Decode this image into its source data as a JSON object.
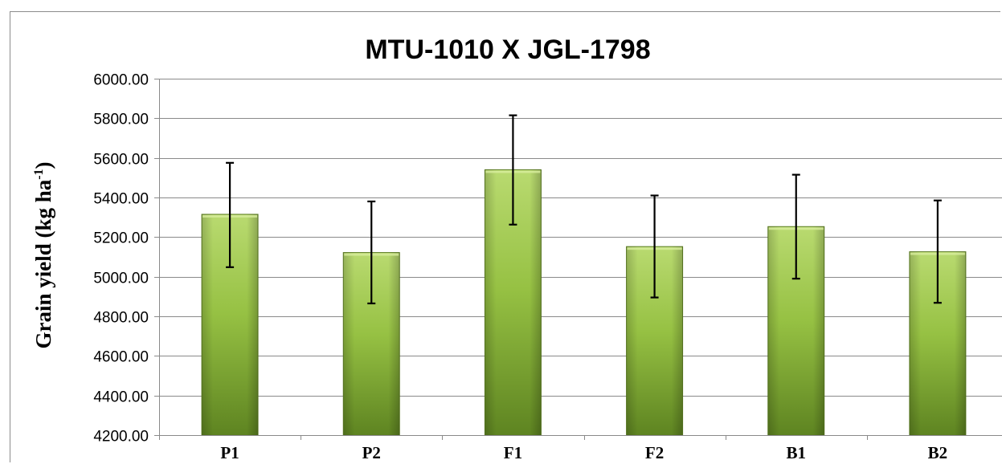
{
  "chart_data": {
    "type": "bar",
    "title": "MTU-1010 X JGL-1798",
    "ylabel_main": "Grain  yield (kg ha",
    "ylabel_sup": "-1",
    "ylabel_close": ")",
    "xlabel": "",
    "categories": [
      "P1",
      "P2",
      "F1",
      "F2",
      "B1",
      "B2"
    ],
    "values": [
      5315,
      5122,
      5540,
      5152,
      5253,
      5126
    ],
    "error_low": [
      5048,
      4865,
      5263,
      4895,
      4990,
      4868
    ],
    "error_high": [
      5575,
      5380,
      5815,
      5410,
      5515,
      5385
    ],
    "ylim": [
      4200,
      6000
    ],
    "yticks": [
      4200,
      4400,
      4600,
      4800,
      5000,
      5200,
      5400,
      5600,
      5800,
      6000
    ],
    "ytick_labels": [
      "4200.00",
      "4400.00",
      "4600.00",
      "4800.00",
      "5000.00",
      "5200.00",
      "5400.00",
      "5600.00",
      "5800.00",
      "6000.00"
    ],
    "grid": true,
    "legend": "none",
    "colors": {
      "bar_light": "#b5d66a",
      "bar_mid": "#8fbb3c",
      "bar_dark": "#557a1c",
      "bar_edge": "#5c7d22",
      "gridline": "#8a8a8a"
    }
  }
}
